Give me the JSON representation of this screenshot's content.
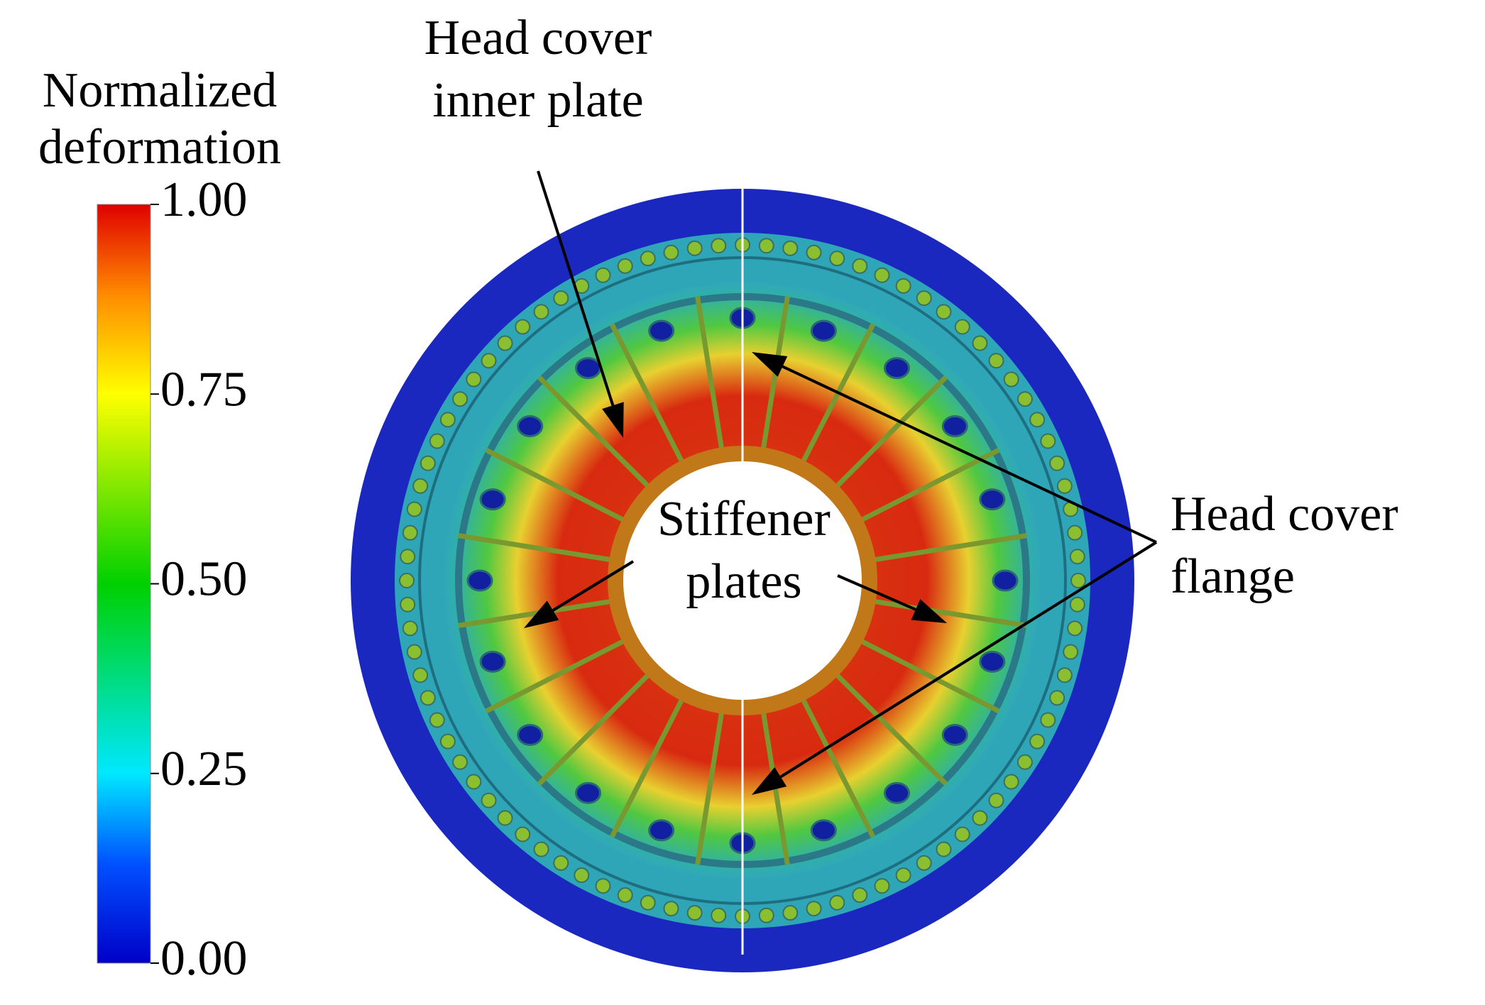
{
  "colorbar": {
    "title": [
      "Normalized",
      "deformation"
    ],
    "range": [
      0,
      1
    ],
    "ticks": [
      {
        "value": 0,
        "label": "0.00"
      },
      {
        "value": 0.25,
        "label": "0.25"
      },
      {
        "value": 0.5,
        "label": "0.50"
      },
      {
        "value": 0.75,
        "label": "0.75"
      },
      {
        "value": 1,
        "label": "1.00"
      }
    ]
  },
  "annotations": [
    {
      "lines": [
        "Head cover",
        "inner plate"
      ]
    },
    {
      "lines": [
        "Stiffener",
        "plates"
      ]
    },
    {
      "lines": [
        "Head cover",
        "flange"
      ]
    }
  ]
}
